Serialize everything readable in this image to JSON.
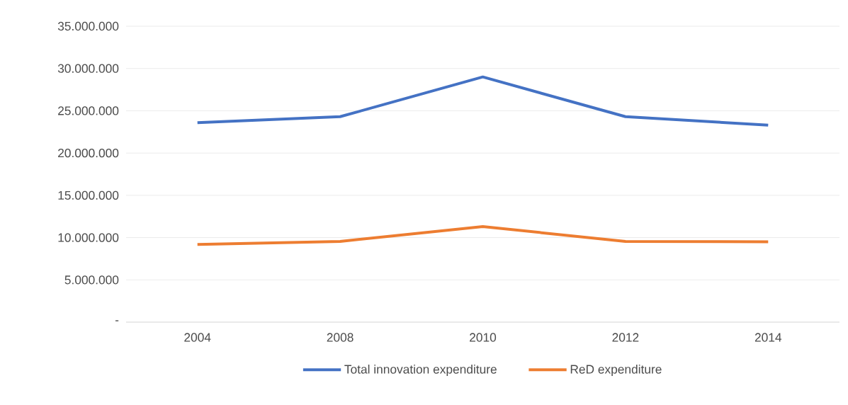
{
  "chart_data": {
    "type": "line",
    "categories": [
      "2004",
      "2008",
      "2010",
      "2012",
      "2014"
    ],
    "series": [
      {
        "name": "Total innovation expenditure",
        "color": "#4472c4",
        "values": [
          23600000,
          24300000,
          29000000,
          24300000,
          23300000
        ]
      },
      {
        "name": "ReD expenditure",
        "color": "#ed7d31",
        "values": [
          9200000,
          9550000,
          11300000,
          9550000,
          9500000
        ]
      }
    ],
    "ylim": [
      0,
      35000000
    ],
    "yticks": [
      {
        "value": 0,
        "label": "-"
      },
      {
        "value": 5000000,
        "label": "5.000.000"
      },
      {
        "value": 10000000,
        "label": "10.000.000"
      },
      {
        "value": 15000000,
        "label": "15.000.000"
      },
      {
        "value": 20000000,
        "label": "20.000.000"
      },
      {
        "value": 25000000,
        "label": "25.000.000"
      },
      {
        "value": 30000000,
        "label": "30.000.000"
      },
      {
        "value": 35000000,
        "label": "35.000.000"
      }
    ],
    "grid": "y",
    "legend": "bottom",
    "marker": "none",
    "line_style": "solid"
  }
}
